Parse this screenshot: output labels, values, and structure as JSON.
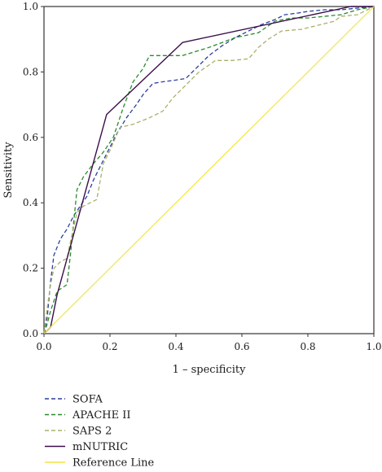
{
  "chart_data": {
    "type": "line",
    "xlabel": "1 – specificity",
    "ylabel": "Sensitivity",
    "xlim": [
      0,
      1
    ],
    "ylim": [
      0,
      1
    ],
    "xticks": [
      "0.0",
      "0.2",
      "0.4",
      "0.6",
      "0.8",
      "1.0"
    ],
    "yticks": [
      "0.0",
      "0.2",
      "0.4",
      "0.6",
      "0.8",
      "1.0"
    ],
    "grid": false,
    "legend_position": "bottom-left",
    "series": [
      {
        "name": "SOFA",
        "color": "#2b3f9e",
        "style": "dashed",
        "x": [
          0,
          0.01,
          0.02,
          0.03,
          0.05,
          0.07,
          0.09,
          0.11,
          0.13,
          0.15,
          0.18,
          0.2,
          0.22,
          0.25,
          0.28,
          0.3,
          0.33,
          0.36,
          0.4,
          0.43,
          0.46,
          0.5,
          0.54,
          0.58,
          0.62,
          0.66,
          0.7,
          0.73,
          0.77,
          0.8,
          0.85,
          0.9,
          0.95,
          1.0
        ],
        "y": [
          0,
          0.05,
          0.16,
          0.24,
          0.29,
          0.32,
          0.36,
          0.39,
          0.42,
          0.47,
          0.53,
          0.57,
          0.61,
          0.66,
          0.7,
          0.73,
          0.765,
          0.77,
          0.775,
          0.78,
          0.81,
          0.85,
          0.88,
          0.905,
          0.925,
          0.945,
          0.96,
          0.975,
          0.98,
          0.985,
          0.99,
          0.99,
          0.995,
          1.0
        ]
      },
      {
        "name": "APACHE II",
        "color": "#2a8a2a",
        "style": "dashed",
        "x": [
          0,
          0.01,
          0.02,
          0.03,
          0.04,
          0.07,
          0.08,
          0.1,
          0.12,
          0.15,
          0.18,
          0.21,
          0.24,
          0.27,
          0.3,
          0.32,
          0.36,
          0.42,
          0.5,
          0.58,
          0.65,
          0.7,
          0.75,
          0.8,
          0.85,
          0.9,
          0.95,
          1.0
        ],
        "y": [
          0,
          0.03,
          0.07,
          0.1,
          0.13,
          0.15,
          0.24,
          0.44,
          0.48,
          0.52,
          0.555,
          0.6,
          0.69,
          0.77,
          0.81,
          0.85,
          0.85,
          0.85,
          0.875,
          0.905,
          0.92,
          0.955,
          0.965,
          0.965,
          0.97,
          0.975,
          0.99,
          1.0
        ]
      },
      {
        "name": "SAPS 2",
        "color": "#a9b06a",
        "style": "dashed",
        "x": [
          0,
          0.01,
          0.02,
          0.03,
          0.05,
          0.07,
          0.08,
          0.1,
          0.12,
          0.14,
          0.16,
          0.18,
          0.2,
          0.23,
          0.27,
          0.32,
          0.36,
          0.39,
          0.43,
          0.47,
          0.52,
          0.57,
          0.62,
          0.65,
          0.68,
          0.72,
          0.78,
          0.84,
          0.88,
          0.9,
          0.95,
          1.0
        ],
        "y": [
          0,
          0.08,
          0.15,
          0.2,
          0.22,
          0.23,
          0.28,
          0.37,
          0.39,
          0.4,
          0.41,
          0.52,
          0.56,
          0.63,
          0.64,
          0.66,
          0.68,
          0.72,
          0.76,
          0.8,
          0.835,
          0.835,
          0.84,
          0.875,
          0.9,
          0.925,
          0.93,
          0.945,
          0.955,
          0.97,
          0.975,
          1.0
        ]
      },
      {
        "name": "mNUTRIC",
        "color": "#3a0e4a",
        "style": "solid",
        "x": [
          0,
          0.02,
          0.04,
          0.19,
          0.42,
          0.93,
          1.0
        ],
        "y": [
          0,
          0.02,
          0.12,
          0.67,
          0.89,
          1.0,
          1.0
        ]
      },
      {
        "name": "Reference Line",
        "color": "#f2e640",
        "style": "solid",
        "x": [
          0,
          1
        ],
        "y": [
          0,
          1
        ]
      }
    ]
  }
}
